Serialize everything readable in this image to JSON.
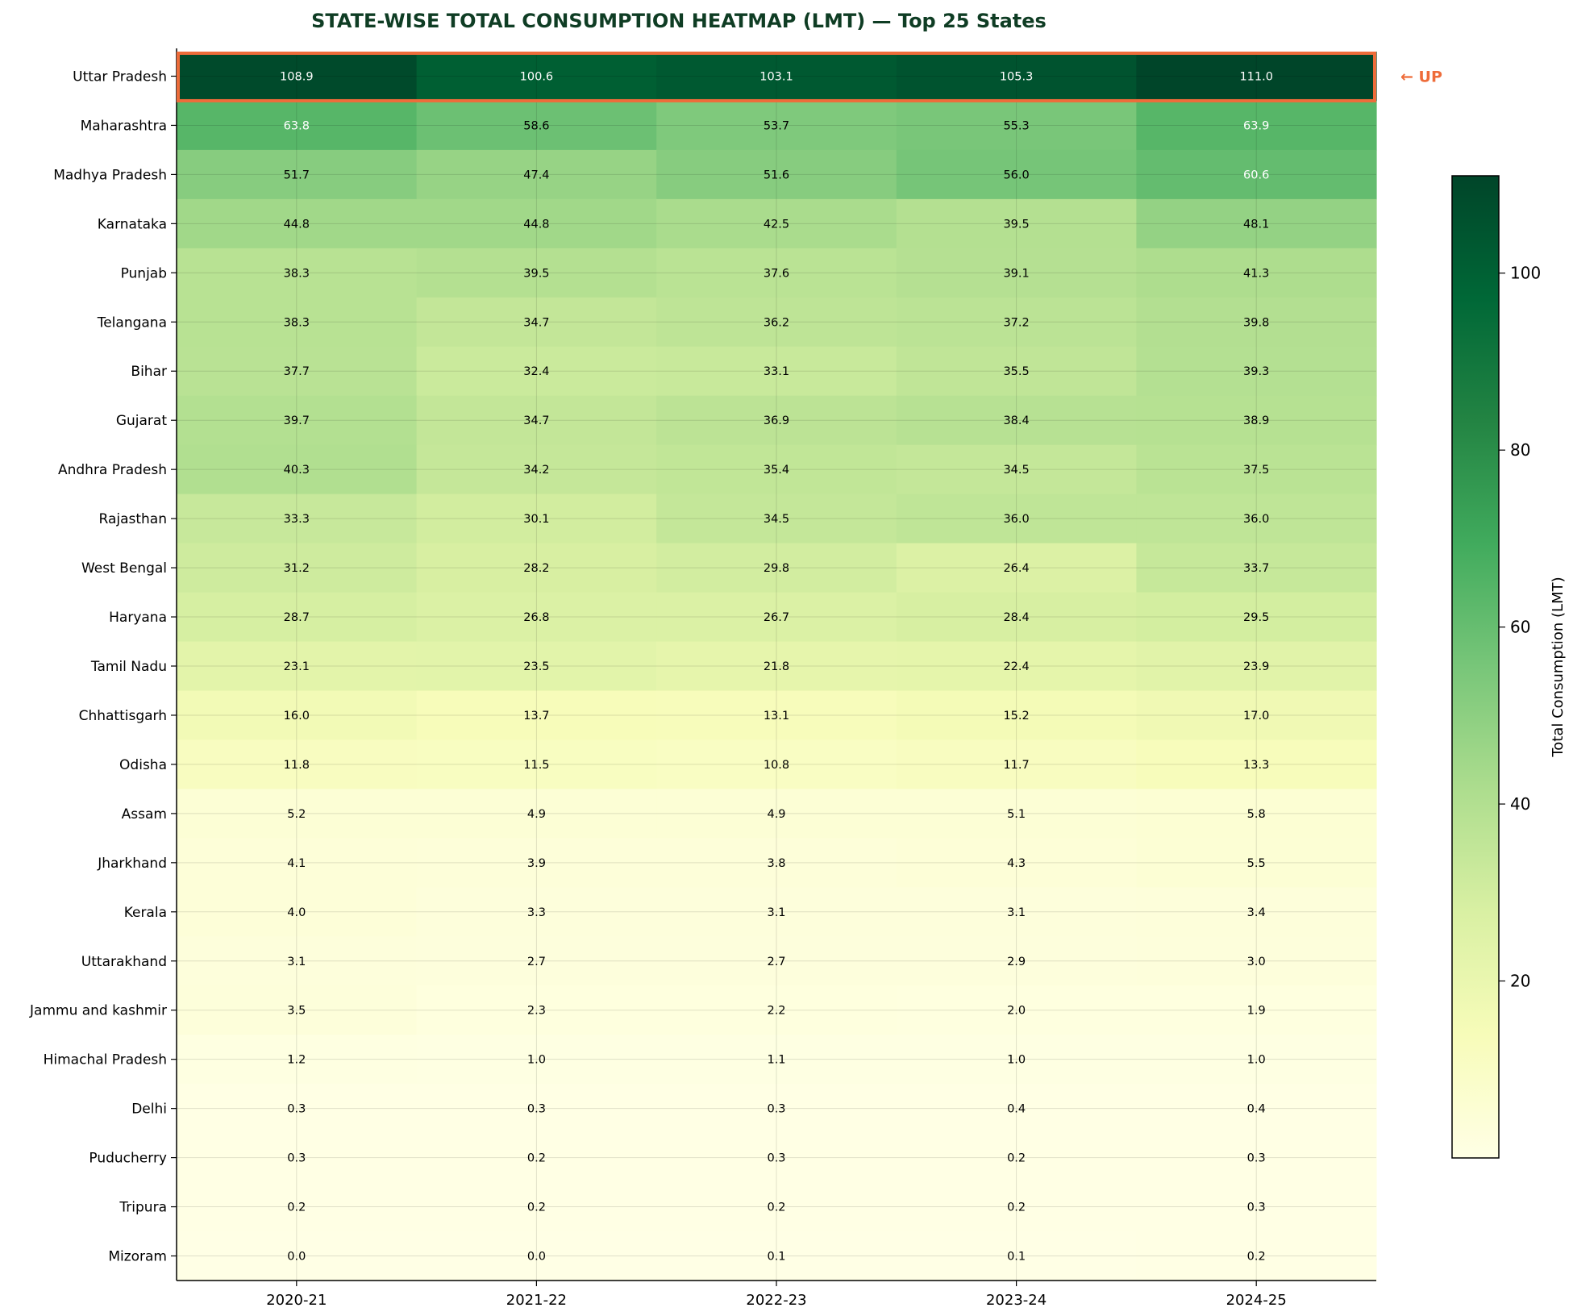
{
  "chart_data": {
    "type": "heatmap",
    "title": "STATE-WISE TOTAL CONSUMPTION HEATMAP (LMT) — Top 25 States",
    "x_categories": [
      "2020-21",
      "2021-22",
      "2022-23",
      "2023-24",
      "2024-25"
    ],
    "y_categories": [
      "Uttar Pradesh",
      "Maharashtra",
      "Madhya Pradesh",
      "Karnataka",
      "Punjab",
      "Telangana",
      "Bihar",
      "Gujarat",
      "Andhra Pradesh",
      "Rajasthan",
      "West Bengal",
      "Haryana",
      "Tamil Nadu",
      "Chhattisgarh",
      "Odisha",
      "Assam",
      "Jharkhand",
      "Kerala",
      "Uttarakhand",
      "Jammu and kashmir",
      "Himachal Pradesh",
      "Delhi",
      "Puducherry",
      "Tripura",
      "Mizoram"
    ],
    "values": [
      [
        108.9,
        100.6,
        103.1,
        105.3,
        111.0
      ],
      [
        63.8,
        58.6,
        53.7,
        55.3,
        63.9
      ],
      [
        51.7,
        47.4,
        51.6,
        56.0,
        60.6
      ],
      [
        44.8,
        44.8,
        42.5,
        39.5,
        48.1
      ],
      [
        38.3,
        39.5,
        37.6,
        39.1,
        41.3
      ],
      [
        38.3,
        34.7,
        36.2,
        37.2,
        39.8
      ],
      [
        37.7,
        32.4,
        33.1,
        35.5,
        39.3
      ],
      [
        39.7,
        34.7,
        36.9,
        38.4,
        38.9
      ],
      [
        40.3,
        34.2,
        35.4,
        34.5,
        37.5
      ],
      [
        33.3,
        30.1,
        34.5,
        36.0,
        36.0
      ],
      [
        31.2,
        28.2,
        29.8,
        26.4,
        33.7
      ],
      [
        28.7,
        26.8,
        26.7,
        28.4,
        29.5
      ],
      [
        23.1,
        23.5,
        21.8,
        22.4,
        23.9
      ],
      [
        16.0,
        13.7,
        13.1,
        15.2,
        17.0
      ],
      [
        11.8,
        11.5,
        10.8,
        11.7,
        13.3
      ],
      [
        5.2,
        4.9,
        4.9,
        5.1,
        5.8
      ],
      [
        4.1,
        3.9,
        3.8,
        4.3,
        5.5
      ],
      [
        4.0,
        3.3,
        3.1,
        3.1,
        3.4
      ],
      [
        3.1,
        2.7,
        2.7,
        2.9,
        3.0
      ],
      [
        3.5,
        2.3,
        2.2,
        2.0,
        1.9
      ],
      [
        1.2,
        1.0,
        1.1,
        1.0,
        1.0
      ],
      [
        0.3,
        0.3,
        0.3,
        0.4,
        0.4
      ],
      [
        0.3,
        0.2,
        0.3,
        0.2,
        0.3
      ],
      [
        0.2,
        0.2,
        0.2,
        0.2,
        0.3
      ],
      [
        0.0,
        0.0,
        0.1,
        0.1,
        0.2
      ]
    ],
    "colormap": "YlGn",
    "colorbar": {
      "label": "Total Consumption (LMT)",
      "range": [
        0.0,
        111.0
      ],
      "ticks": [
        20,
        40,
        60,
        80,
        100
      ]
    },
    "grid": true,
    "highlight": {
      "row": "Uttar Pradesh",
      "text": "← UP",
      "color": "#ee6c3a"
    }
  }
}
